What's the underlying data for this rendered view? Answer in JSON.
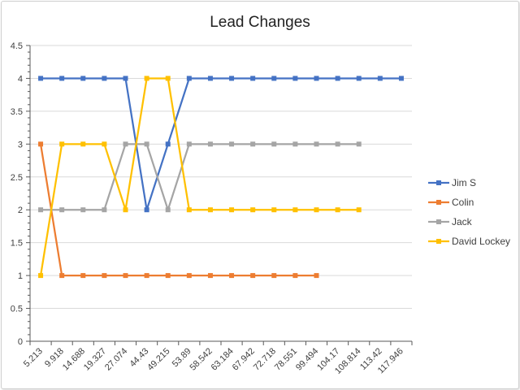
{
  "chart_data": {
    "type": "line",
    "title": "Lead Changes",
    "xlabel": "",
    "ylabel": "",
    "ylim": [
      0,
      4.5
    ],
    "y_ticks": [
      "0",
      "0.5",
      "1",
      "1.5",
      "2",
      "2.5",
      "3",
      "3.5",
      "4",
      "4.5"
    ],
    "grid": true,
    "legend_position": "right",
    "categories": [
      "5.213",
      "9.918",
      "14.688",
      "19.327",
      "27.074",
      "44.43",
      "49.215",
      "53.89",
      "58.542",
      "63.184",
      "67.942",
      "72.718",
      "78.551",
      "99.494",
      "104.17",
      "108.814",
      "113.42",
      "117.946"
    ],
    "series": [
      {
        "name": "Jim S",
        "color": "#4472c4",
        "values": [
          4,
          4,
          4,
          4,
          4,
          2,
          3,
          4,
          4,
          4,
          4,
          4,
          4,
          4,
          4,
          4,
          4,
          4
        ]
      },
      {
        "name": "Colin",
        "color": "#ed7d31",
        "values": [
          3,
          1,
          1,
          1,
          1,
          1,
          1,
          1,
          1,
          1,
          1,
          1,
          1,
          1,
          null,
          null,
          null,
          null
        ]
      },
      {
        "name": "Jack",
        "color": "#a5a5a5",
        "values": [
          2,
          2,
          2,
          2,
          3,
          3,
          2,
          3,
          3,
          3,
          3,
          3,
          3,
          3,
          3,
          3,
          null,
          null
        ]
      },
      {
        "name": "David Lockey",
        "color": "#ffc000",
        "values": [
          1,
          3,
          3,
          3,
          2,
          4,
          4,
          2,
          2,
          2,
          2,
          2,
          2,
          2,
          2,
          2,
          null,
          null
        ]
      }
    ]
  }
}
